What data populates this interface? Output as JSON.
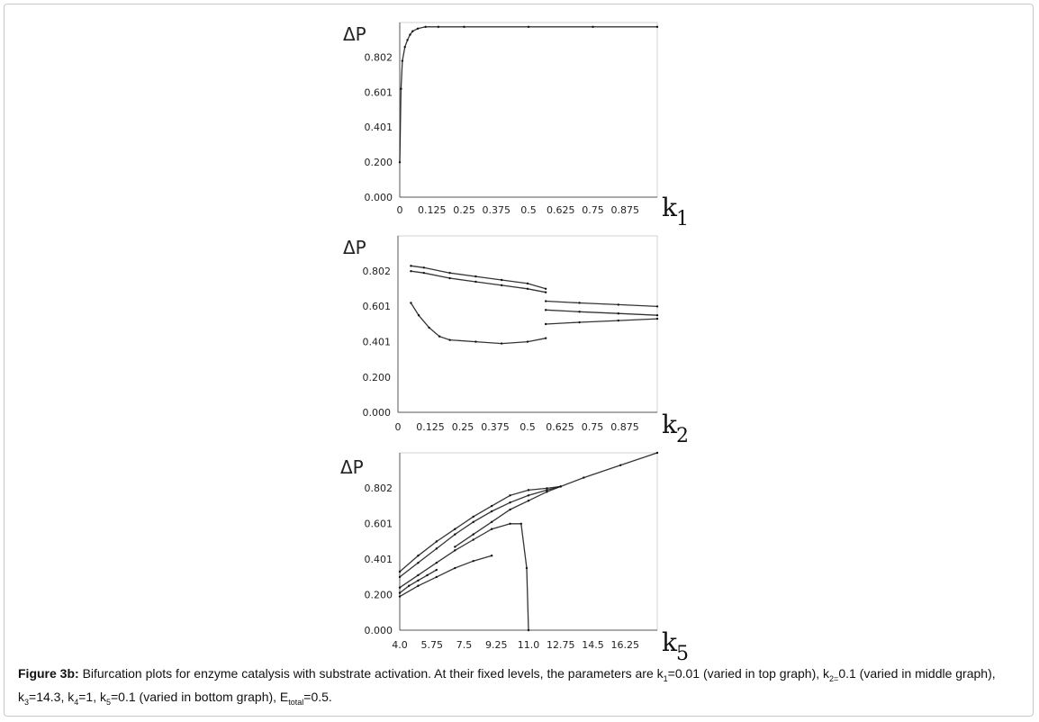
{
  "chart_data": [
    {
      "type": "scatter",
      "title": "",
      "ylabel": "ΔP",
      "xlabel_main": "k",
      "xlabel_sub": "1",
      "x_ticks": [
        "0",
        "0.125",
        "0.25",
        "0.375",
        "0.5",
        "0.625",
        "0.75",
        "0.875"
      ],
      "x_tick_values": [
        0,
        0.125,
        0.25,
        0.375,
        0.5,
        0.625,
        0.75,
        0.875
      ],
      "y_ticks": [
        "0.000",
        "0.200",
        "0.401",
        "0.601",
        "0.802"
      ],
      "y_tick_values": [
        0.0,
        0.2,
        0.401,
        0.601,
        0.802
      ],
      "xlim": [
        0,
        1.0
      ],
      "ylim": [
        0,
        1.0
      ],
      "grid": false,
      "series": [
        {
          "x": [
            0.0,
            0.005,
            0.01,
            0.02,
            0.03,
            0.04,
            0.05,
            0.07,
            0.1,
            0.15,
            0.25,
            0.5,
            0.75,
            1.0
          ],
          "y": [
            0.2,
            0.62,
            0.78,
            0.86,
            0.9,
            0.93,
            0.95,
            0.965,
            0.975,
            0.975,
            0.975,
            0.975,
            0.975,
            0.975
          ]
        }
      ]
    },
    {
      "type": "scatter",
      "title": "",
      "ylabel": "ΔP",
      "xlabel_main": "k",
      "xlabel_sub": "2",
      "x_ticks": [
        "0",
        "0.125",
        "0.25",
        "0.375",
        "0.5",
        "0.625",
        "0.75",
        "0.875"
      ],
      "x_tick_values": [
        0,
        0.125,
        0.25,
        0.375,
        0.5,
        0.625,
        0.75,
        0.875
      ],
      "y_ticks": [
        "0.000",
        "0.200",
        "0.401",
        "0.601",
        "0.802"
      ],
      "y_tick_values": [
        0.0,
        0.2,
        0.401,
        0.601,
        0.802
      ],
      "xlim": [
        0,
        1.0
      ],
      "ylim": [
        0,
        1.0
      ],
      "grid": false,
      "series": [
        {
          "x": [
            0.05,
            0.1,
            0.2,
            0.3,
            0.4,
            0.5,
            0.57
          ],
          "y": [
            0.83,
            0.82,
            0.79,
            0.77,
            0.75,
            0.73,
            0.7
          ]
        },
        {
          "x": [
            0.05,
            0.1,
            0.2,
            0.3,
            0.4,
            0.5,
            0.57
          ],
          "y": [
            0.8,
            0.79,
            0.76,
            0.74,
            0.72,
            0.7,
            0.68
          ]
        },
        {
          "x": [
            0.05,
            0.08,
            0.12,
            0.16,
            0.2,
            0.3,
            0.4,
            0.5,
            0.57
          ],
          "y": [
            0.62,
            0.55,
            0.48,
            0.43,
            0.41,
            0.4,
            0.39,
            0.4,
            0.42
          ]
        },
        {
          "x": [
            0.57,
            0.7,
            0.85,
            1.0
          ],
          "y": [
            0.63,
            0.62,
            0.61,
            0.6
          ]
        },
        {
          "x": [
            0.57,
            0.7,
            0.85,
            1.0
          ],
          "y": [
            0.58,
            0.57,
            0.56,
            0.55
          ]
        },
        {
          "x": [
            0.57,
            0.7,
            0.85,
            1.0
          ],
          "y": [
            0.5,
            0.51,
            0.52,
            0.53
          ]
        }
      ]
    },
    {
      "type": "scatter",
      "title": "",
      "ylabel": "ΔP",
      "xlabel_main": "k",
      "xlabel_sub": "5",
      "x_ticks": [
        "4.0",
        "5.75",
        "7.5",
        "9.25",
        "11.0",
        "12.75",
        "14.5",
        "16.25"
      ],
      "x_tick_values": [
        4.0,
        5.75,
        7.5,
        9.25,
        11.0,
        12.75,
        14.5,
        16.25
      ],
      "y_ticks": [
        "0.000",
        "0.200",
        "0.401",
        "0.601",
        "0.802"
      ],
      "y_tick_values": [
        0.0,
        0.2,
        0.401,
        0.601,
        0.802
      ],
      "xlim": [
        4.0,
        18.0
      ],
      "ylim": [
        0,
        1.0
      ],
      "grid": false,
      "series": [
        {
          "x": [
            4.0,
            5.0,
            6.0,
            7.0,
            8.0,
            9.0,
            10.0,
            11.0,
            12.0,
            12.75,
            14.0,
            16.0,
            18.0
          ],
          "y": [
            0.33,
            0.42,
            0.5,
            0.57,
            0.64,
            0.7,
            0.76,
            0.79,
            0.8,
            0.81,
            0.86,
            0.93,
            1.0
          ]
        },
        {
          "x": [
            4.0,
            5.0,
            6.0,
            7.0,
            8.0,
            9.0,
            10.0,
            11.0,
            12.0,
            12.75
          ],
          "y": [
            0.3,
            0.38,
            0.46,
            0.54,
            0.61,
            0.67,
            0.72,
            0.76,
            0.79,
            0.81
          ]
        },
        {
          "x": [
            7.0,
            8.0,
            9.0,
            10.0,
            11.0,
            12.0,
            12.75
          ],
          "y": [
            0.47,
            0.54,
            0.61,
            0.68,
            0.73,
            0.78,
            0.81
          ]
        },
        {
          "x": [
            4.0,
            5.0,
            6.0,
            7.0,
            8.0,
            9.0,
            10.0,
            10.6,
            10.9,
            11.0
          ],
          "y": [
            0.24,
            0.31,
            0.38,
            0.45,
            0.51,
            0.57,
            0.6,
            0.6,
            0.35,
            0.0
          ]
        },
        {
          "x": [
            4.0,
            5.0,
            6.0,
            7.0,
            8.0,
            9.0
          ],
          "y": [
            0.19,
            0.25,
            0.3,
            0.35,
            0.39,
            0.42
          ]
        },
        {
          "x": [
            4.0,
            4.5,
            5.0,
            5.5,
            6.0
          ],
          "y": [
            0.21,
            0.25,
            0.28,
            0.31,
            0.34
          ]
        }
      ]
    }
  ],
  "caption": {
    "label": "Figure 3b:",
    "line1": "Bifurcation plots for enzyme catalysis with substrate activation. At their fixed levels, the parameters are k",
    "k1_sub": "1",
    "k1_val": "=0.01 (varied in top graph), k",
    "k2_sub": "2=",
    "k2_val": "0.1 (varied in middle graph), k",
    "k3_sub": "3",
    "k3_val": "=14.3, k",
    "k4_sub": "4",
    "k4_val": "=1, k",
    "k5_sub": "5",
    "k5_val": "=0.1 (varied in bottom graph), E",
    "e_sub": "total",
    "e_val": "=0.5."
  }
}
